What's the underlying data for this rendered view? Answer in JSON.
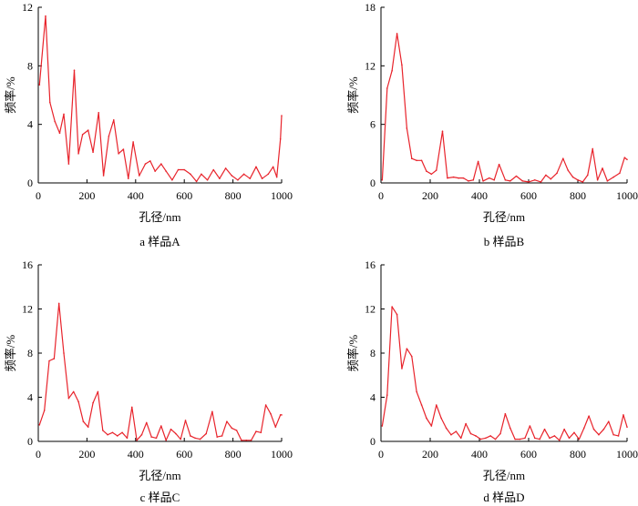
{
  "chart_data": [
    {
      "id": "a",
      "type": "line",
      "caption": "a  样品A",
      "xlabel": "孔径/nm",
      "ylabel": "频率/%",
      "xlim": [
        0,
        1000
      ],
      "ylim": [
        0,
        12
      ],
      "xticks": [
        0,
        200,
        400,
        600,
        800,
        1000
      ],
      "yticks": [
        0,
        4,
        8,
        12
      ],
      "line_color": "#e8232b",
      "x": [
        5,
        30,
        48,
        68,
        88,
        105,
        125,
        148,
        165,
        182,
        205,
        225,
        248,
        268,
        290,
        310,
        330,
        350,
        370,
        390,
        415,
        440,
        460,
        480,
        505,
        525,
        550,
        575,
        600,
        625,
        650,
        670,
        695,
        720,
        745,
        770,
        795,
        820,
        845,
        870,
        895,
        920,
        945,
        965,
        980,
        995,
        1000
      ],
      "y": [
        6.7,
        11.4,
        5.5,
        4.2,
        3.4,
        4.7,
        1.3,
        7.7,
        2.0,
        3.3,
        3.6,
        2.1,
        4.8,
        0.5,
        3.2,
        4.3,
        2.0,
        2.3,
        0.3,
        2.8,
        0.5,
        1.3,
        1.5,
        0.8,
        1.3,
        0.8,
        0.2,
        0.9,
        0.9,
        0.6,
        0.1,
        0.6,
        0.2,
        0.9,
        0.3,
        1.0,
        0.5,
        0.2,
        0.6,
        0.3,
        1.1,
        0.3,
        0.6,
        1.1,
        0.4,
        3.0,
        4.6
      ]
    },
    {
      "id": "b",
      "type": "line",
      "caption": "b  样品B",
      "xlabel": "孔径/nm",
      "ylabel": "频率/%",
      "xlim": [
        0,
        1000
      ],
      "ylim": [
        0,
        18
      ],
      "xticks": [
        0,
        200,
        400,
        600,
        800,
        1000
      ],
      "yticks": [
        0,
        6,
        12,
        18
      ],
      "line_color": "#e8232b",
      "x": [
        5,
        25,
        45,
        65,
        85,
        105,
        125,
        145,
        165,
        185,
        205,
        225,
        250,
        270,
        295,
        315,
        335,
        355,
        375,
        395,
        415,
        440,
        460,
        480,
        505,
        525,
        550,
        575,
        600,
        625,
        650,
        670,
        690,
        715,
        740,
        760,
        780,
        800,
        820,
        840,
        860,
        880,
        900,
        920,
        945,
        970,
        990,
        1000
      ],
      "y": [
        0.3,
        9.7,
        11.5,
        15.3,
        12.1,
        5.6,
        2.5,
        2.3,
        2.3,
        1.2,
        0.9,
        1.3,
        5.3,
        0.5,
        0.6,
        0.5,
        0.5,
        0.2,
        0.3,
        2.2,
        0.2,
        0.5,
        0.3,
        1.9,
        0.3,
        0.2,
        0.7,
        0.2,
        0.1,
        0.3,
        0.1,
        0.8,
        0.4,
        1.0,
        2.5,
        1.3,
        0.6,
        0.3,
        0.1,
        0.8,
        3.5,
        0.3,
        1.5,
        0.2,
        0.6,
        1.0,
        2.6,
        2.4
      ]
    },
    {
      "id": "c",
      "type": "line",
      "caption": "c  样品C",
      "xlabel": "孔径/nm",
      "ylabel": "频率/%",
      "xlim": [
        0,
        1000
      ],
      "ylim": [
        0,
        16
      ],
      "xticks": [
        0,
        200,
        400,
        600,
        800,
        1000
      ],
      "yticks": [
        0,
        4,
        8,
        12,
        16
      ],
      "line_color": "#e8232b",
      "x": [
        5,
        25,
        45,
        65,
        85,
        105,
        125,
        145,
        165,
        185,
        205,
        225,
        245,
        265,
        285,
        305,
        325,
        345,
        365,
        385,
        405,
        425,
        445,
        465,
        485,
        505,
        525,
        545,
        565,
        585,
        605,
        625,
        645,
        665,
        690,
        715,
        735,
        755,
        775,
        795,
        815,
        835,
        855,
        875,
        895,
        915,
        935,
        955,
        975,
        995,
        1000
      ],
      "y": [
        1.5,
        2.8,
        7.3,
        7.5,
        12.5,
        8.0,
        3.9,
        4.5,
        3.6,
        1.8,
        1.3,
        3.5,
        4.5,
        1.0,
        0.6,
        0.8,
        0.5,
        0.8,
        0.3,
        3.1,
        0.1,
        0.6,
        1.7,
        0.4,
        0.3,
        1.4,
        0.1,
        1.1,
        0.7,
        0.2,
        1.9,
        0.5,
        0.3,
        0.2,
        0.7,
        2.7,
        0.4,
        0.5,
        1.8,
        1.2,
        1.0,
        0.1,
        0.1,
        0.1,
        0.9,
        0.8,
        3.3,
        2.5,
        1.3,
        2.4,
        2.4
      ]
    },
    {
      "id": "d",
      "type": "line",
      "caption": "d  样品D",
      "xlabel": "孔径/nm",
      "ylabel": "频率/%",
      "xlim": [
        0,
        1000
      ],
      "ylim": [
        0,
        16
      ],
      "xticks": [
        0,
        200,
        400,
        600,
        800,
        1000
      ],
      "yticks": [
        0,
        4,
        8,
        12,
        16
      ],
      "line_color": "#e8232b",
      "x": [
        5,
        25,
        45,
        65,
        85,
        105,
        125,
        145,
        165,
        185,
        205,
        225,
        245,
        265,
        285,
        305,
        325,
        345,
        365,
        385,
        405,
        425,
        445,
        465,
        485,
        505,
        525,
        545,
        565,
        585,
        605,
        625,
        645,
        665,
        685,
        705,
        725,
        745,
        765,
        785,
        805,
        825,
        845,
        865,
        885,
        905,
        925,
        945,
        965,
        985,
        1000
      ],
      "y": [
        1.4,
        4.2,
        12.2,
        11.5,
        6.6,
        8.4,
        7.7,
        4.5,
        3.3,
        2.1,
        1.4,
        3.3,
        2.1,
        1.2,
        0.6,
        0.9,
        0.3,
        1.6,
        0.7,
        0.5,
        0.2,
        0.3,
        0.5,
        0.2,
        0.7,
        2.5,
        1.2,
        0.2,
        0.2,
        0.3,
        1.4,
        0.3,
        0.2,
        1.1,
        0.3,
        0.5,
        0.1,
        1.1,
        0.3,
        0.8,
        0.2,
        1.2,
        2.3,
        1.1,
        0.6,
        1.1,
        1.8,
        0.6,
        0.5,
        2.4,
        1.3
      ]
    }
  ]
}
